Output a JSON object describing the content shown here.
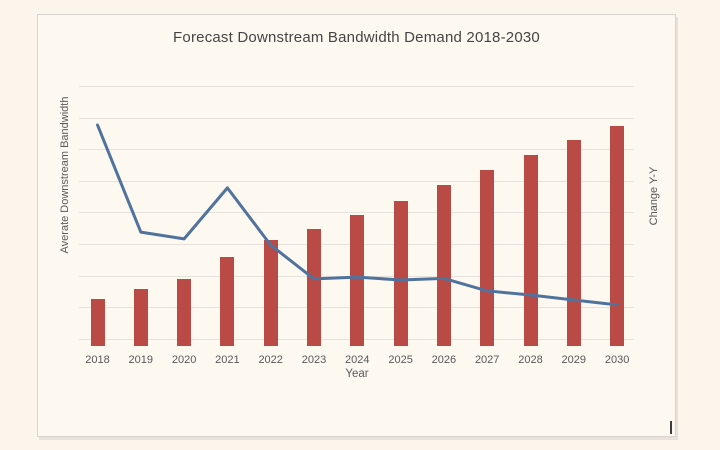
{
  "window": {
    "background": "#fcf5eb",
    "frame_background": "#fdf8f0",
    "frame_border": "#d8d4cd",
    "gridline_color": "#e6e1da"
  },
  "chart_data": {
    "type": "bar",
    "subtype": "bar-and-line-combo",
    "title": "Forecast Downstream Bandwidth Demand 2018-2030",
    "xlabel": "Year",
    "ylabel_left": "Averate Downstream Bandwidth",
    "ylabel_right": "Change Y-Y",
    "categories": [
      "2018",
      "2019",
      "2020",
      "2021",
      "2022",
      "2023",
      "2024",
      "2025",
      "2026",
      "2027",
      "2028",
      "2029",
      "2030"
    ],
    "series": [
      {
        "name": "Averate Downstream Bandwidth",
        "type": "bar",
        "axis": "left",
        "color": "#b94a45",
        "units": "percent_of_plot_height",
        "values": [
          18.1,
          21.9,
          25.8,
          34.2,
          40.8,
          45.0,
          50.4,
          55.8,
          61.9,
          67.7,
          73.5,
          79.2,
          84.6
        ]
      },
      {
        "name": "Change Y-Y",
        "type": "line",
        "axis": "right",
        "color": "#50739e",
        "units": "percent_of_plot_height",
        "values": [
          85.0,
          43.8,
          41.2,
          60.8,
          38.8,
          25.8,
          26.5,
          25.4,
          26.0,
          21.2,
          19.6,
          17.7,
          15.8
        ]
      }
    ],
    "axis_style": {
      "numeric_tick_labels_visible": false,
      "gridlines": "horizontal",
      "gridline_count": 9,
      "legend": "none"
    }
  }
}
